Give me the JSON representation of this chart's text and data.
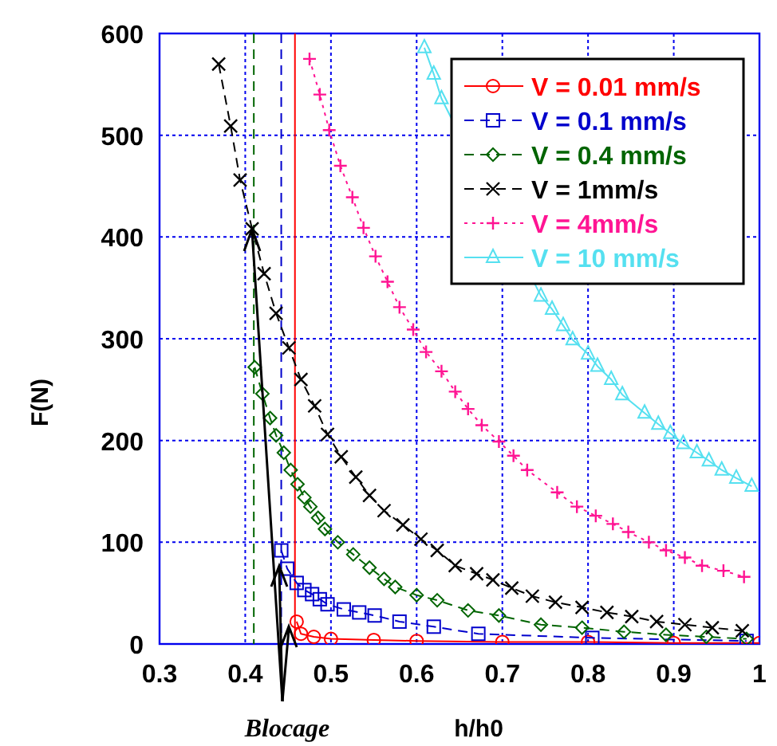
{
  "chart_data": {
    "type": "line",
    "xlabel": "h/h0",
    "ylabel": "F(N)",
    "annotations": [
      {
        "text": "Blocage",
        "x": 0.408,
        "y": 408
      }
    ],
    "xlim": [
      0.3,
      1
    ],
    "xticks": [
      0.3,
      0.4,
      0.5,
      0.6,
      0.7,
      0.8,
      0.9,
      1
    ],
    "ylim": [
      0,
      600
    ],
    "yticks": [
      0,
      100,
      200,
      300,
      400,
      500,
      600
    ],
    "grid": true,
    "legend": "top right",
    "ref_lines": [
      {
        "axis": "x",
        "value": 0.41,
        "color": "#006400",
        "line_style": "dashed"
      },
      {
        "axis": "x",
        "value": 0.442,
        "color": "#0000cc",
        "line_style": "dashed"
      },
      {
        "axis": "x",
        "value": 0.458,
        "color": "#ff0000",
        "line_style": "solid"
      }
    ],
    "series": [
      {
        "name": "V = 0.01 mm/s",
        "color": "#ff0000",
        "marker": "circle",
        "line_style": "solid",
        "x": [
          0.46,
          0.465,
          0.48,
          0.5,
          0.55,
          0.6,
          0.7,
          0.8,
          0.9,
          1.0
        ],
        "values": [
          22,
          10,
          7,
          5,
          4,
          3,
          2,
          2,
          1,
          1
        ]
      },
      {
        "name": "V = 0.1 mm/s",
        "color": "#0000cc",
        "marker": "square",
        "line_style": "dashed",
        "x": [
          0.442,
          0.449,
          0.46,
          0.469,
          0.478,
          0.487,
          0.496,
          0.515,
          0.533,
          0.551,
          0.58,
          0.62,
          0.672,
          0.805,
          0.985
        ],
        "values": [
          92,
          74,
          60,
          53,
          49,
          44,
          39,
          34,
          31,
          28,
          22,
          17,
          10,
          6,
          3
        ]
      },
      {
        "name": "V = 0.4 mm/s",
        "color": "#006400",
        "marker": "diamond",
        "line_style": "dashed",
        "x": [
          0.411,
          0.42,
          0.429,
          0.436,
          0.445,
          0.453,
          0.461,
          0.469,
          0.476,
          0.485,
          0.493,
          0.508,
          0.526,
          0.545,
          0.562,
          0.575,
          0.6,
          0.624,
          0.66,
          0.696,
          0.745,
          0.793,
          0.842,
          0.891,
          0.938,
          0.985
        ],
        "values": [
          272,
          246,
          222,
          205,
          188,
          171,
          157,
          144,
          135,
          124,
          113,
          100,
          88,
          75,
          64,
          56,
          48,
          43,
          33,
          28,
          19,
          16,
          12,
          9,
          7,
          5
        ]
      },
      {
        "name": "V = 1mm/s",
        "color": "#000000",
        "marker": "x",
        "line_style": "dashed",
        "x": [
          0.369,
          0.383,
          0.394,
          0.408,
          0.422,
          0.436,
          0.451,
          0.465,
          0.481,
          0.496,
          0.512,
          0.529,
          0.545,
          0.562,
          0.584,
          0.605,
          0.624,
          0.645,
          0.67,
          0.689,
          0.711,
          0.735,
          0.762,
          0.793,
          0.822,
          0.851,
          0.88,
          0.913,
          0.945,
          0.98
        ],
        "values": [
          570,
          509,
          456,
          408,
          364,
          325,
          291,
          260,
          234,
          206,
          184,
          164,
          146,
          131,
          117,
          103,
          92,
          77,
          69,
          63,
          55,
          47,
          41,
          36,
          31,
          27,
          22,
          19,
          16,
          13
        ]
      },
      {
        "name": "V = 4mm/s",
        "color": "#ff1493",
        "marker": "cross",
        "line_style": "dotted",
        "x": [
          0.475,
          0.487,
          0.498,
          0.511,
          0.525,
          0.538,
          0.552,
          0.566,
          0.58,
          0.596,
          0.611,
          0.629,
          0.645,
          0.66,
          0.676,
          0.696,
          0.713,
          0.729,
          0.764,
          0.787,
          0.809,
          0.829,
          0.847,
          0.871,
          0.891,
          0.913,
          0.933,
          0.958,
          0.982
        ],
        "values": [
          575,
          540,
          505,
          470,
          439,
          409,
          381,
          356,
          331,
          309,
          287,
          268,
          248,
          231,
          215,
          199,
          185,
          171,
          149,
          135,
          126,
          118,
          110,
          100,
          92,
          85,
          77,
          72,
          66
        ]
      },
      {
        "name": "V = 10 mm/s",
        "color": "#55e0f0",
        "marker": "triangle",
        "line_style": "solid",
        "x": [
          0.609,
          0.62,
          0.629,
          0.745,
          0.758,
          0.771,
          0.782,
          0.8,
          0.811,
          0.827,
          0.84,
          0.866,
          0.882,
          0.896,
          0.911,
          0.927,
          0.941,
          0.956,
          0.973,
          0.991
        ],
        "values": [
          586,
          560,
          536,
          342,
          329,
          313,
          299,
          285,
          273,
          260,
          245,
          227,
          216,
          207,
          197,
          188,
          180,
          171,
          163,
          155
        ]
      }
    ]
  }
}
